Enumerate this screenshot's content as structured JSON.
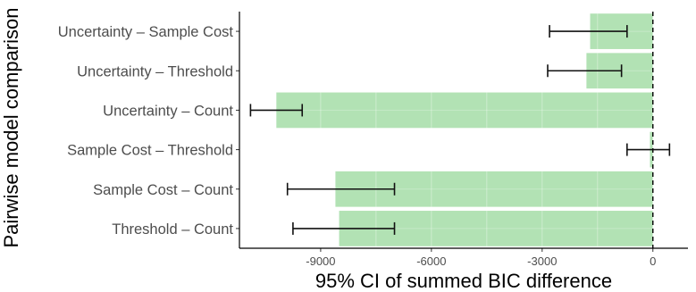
{
  "chart_data": {
    "type": "bar",
    "orientation": "horizontal",
    "categories": [
      "Uncertainty – Sample Cost",
      "Uncertainty – Threshold",
      "Uncertainty – Count",
      "Sample Cost – Threshold",
      "Sample Cost – Count",
      "Threshold – Count"
    ],
    "values": [
      -1700,
      -1800,
      -10200,
      -80,
      -8600,
      -8500
    ],
    "error_low": [
      -2800,
      -2850,
      -10900,
      -700,
      -9900,
      -9750
    ],
    "error_high": [
      -700,
      -850,
      -9500,
      450,
      -7000,
      -7000
    ],
    "xlabel": "95% CI of summed BIC difference",
    "ylabel": "Pairwise model comparison",
    "xlim": [
      -11200,
      950
    ],
    "xticks": [
      -9000,
      -6000,
      -3000,
      0
    ],
    "xtick_labels": [
      "-9000",
      "-6000",
      "-3000",
      "0"
    ],
    "reference_line": 0,
    "grid": true,
    "colors": {
      "bar": "#b2e2b4",
      "error_bar": "#111111",
      "axis": "#000000",
      "grid": "#ffffff",
      "tick_label": "#4d4d4d",
      "category_label": "#4d4d4d"
    }
  }
}
